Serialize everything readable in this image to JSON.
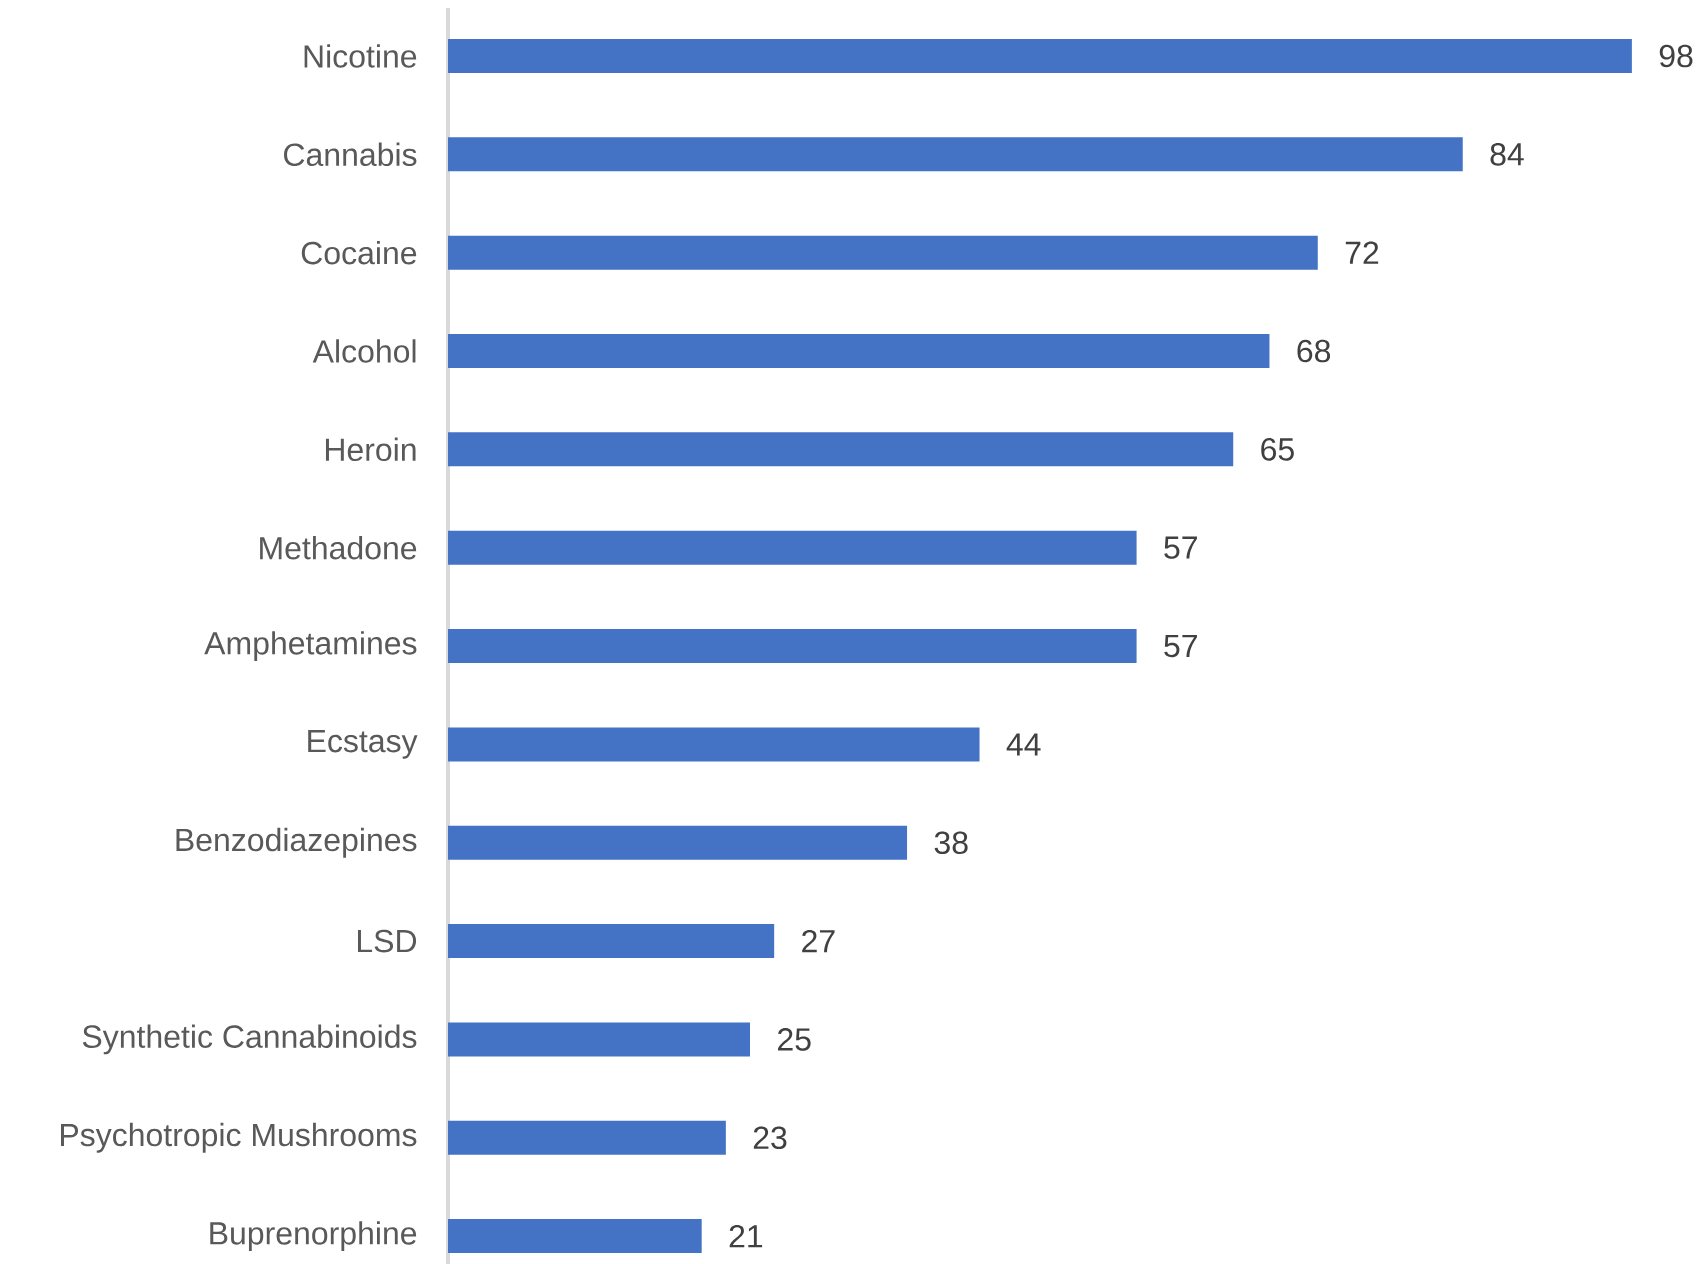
{
  "chart_data": {
    "type": "bar",
    "orientation": "horizontal",
    "categories": [
      "Nicotine",
      "Cannabis",
      "Cocaine",
      "Alcohol",
      "Heroin",
      "Methadone",
      "Amphetamines",
      "Ecstasy",
      "Benzodiazepines",
      "LSD",
      "Synthetic Cannabinoids",
      "Psychotropic Mushrooms",
      "Buprenorphine"
    ],
    "values": [
      98,
      84,
      72,
      68,
      65,
      57,
      57,
      44,
      38,
      27,
      25,
      23,
      21
    ],
    "color": "#4472c4",
    "data_labels": true,
    "tick_labels": "y"
  }
}
